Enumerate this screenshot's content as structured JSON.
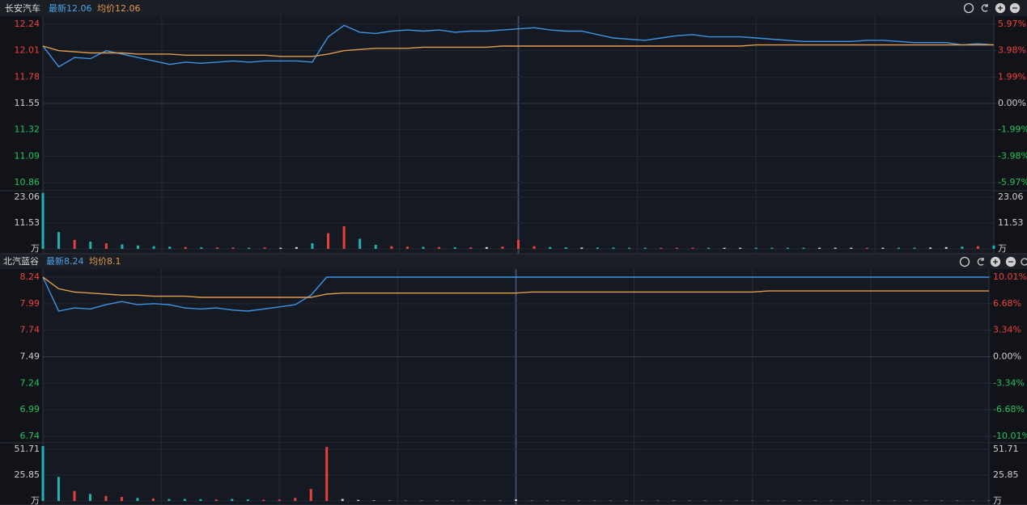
{
  "headers": [
    {
      "name": "长安汽车",
      "latest_label": "最新",
      "latest": 12.06,
      "avg_label": "均价",
      "avg": 12.06
    },
    {
      "name": "北汽蓝谷",
      "latest_label": "最新",
      "latest": 8.24,
      "avg_label": "均价",
      "avg": 8.1
    }
  ],
  "chart_data": [
    {
      "type": "line",
      "x": [
        0,
        4,
        8,
        12,
        16,
        20,
        24,
        28,
        32,
        36,
        40,
        44,
        48,
        52,
        56,
        60,
        64,
        68,
        72,
        76,
        80,
        84,
        88,
        92,
        96,
        100,
        104,
        108,
        112,
        116,
        120,
        124,
        128,
        132,
        136,
        140,
        144,
        148,
        152,
        156,
        160,
        164,
        168,
        172,
        176,
        180,
        184,
        188,
        192,
        196,
        200,
        204,
        208,
        212,
        216,
        220,
        224,
        228,
        232,
        236,
        240
      ],
      "xlim": [
        0,
        240
      ],
      "xticks": [
        30,
        60,
        90,
        120,
        150,
        180,
        210
      ],
      "ylim": [
        10.86,
        12.24
      ],
      "yticks": [
        10.86,
        11.09,
        11.32,
        11.55,
        11.78,
        12.01,
        12.24
      ],
      "y2lim": [
        -5.97,
        5.97
      ],
      "y2ticks": [
        {
          "value": -5.97,
          "label": "-5.97%"
        },
        {
          "value": -3.98,
          "label": "-3.98%"
        },
        {
          "value": -1.99,
          "label": "-1.99%"
        },
        {
          "value": 0,
          "label": "0.00%"
        },
        {
          "value": 1.99,
          "label": "1.99%"
        },
        {
          "value": 3.98,
          "label": "3.98%"
        },
        {
          "value": 5.97,
          "label": "5.97%"
        }
      ],
      "grid": true,
      "series": [
        {
          "color": "#3d95e6",
          "values": [
            12.05,
            11.87,
            11.95,
            11.94,
            12.01,
            11.98,
            11.95,
            11.92,
            11.89,
            11.91,
            11.9,
            11.91,
            11.92,
            11.91,
            11.92,
            11.92,
            11.92,
            11.91,
            12.13,
            12.23,
            12.17,
            12.16,
            12.18,
            12.19,
            12.18,
            12.19,
            12.17,
            12.18,
            12.18,
            12.19,
            12.2,
            12.21,
            12.19,
            12.18,
            12.18,
            12.15,
            12.12,
            12.11,
            12.1,
            12.12,
            12.14,
            12.15,
            12.13,
            12.13,
            12.13,
            12.12,
            12.11,
            12.1,
            12.09,
            12.09,
            12.09,
            12.09,
            12.1,
            12.1,
            12.09,
            12.08,
            12.08,
            12.08,
            12.06,
            12.07,
            12.06
          ]
        },
        {
          "color": "#e39b4c",
          "values": [
            12.05,
            12.01,
            12.0,
            11.99,
            11.99,
            11.99,
            11.98,
            11.98,
            11.98,
            11.97,
            11.97,
            11.97,
            11.97,
            11.97,
            11.97,
            11.96,
            11.96,
            11.96,
            11.98,
            12.01,
            12.02,
            12.03,
            12.03,
            12.03,
            12.04,
            12.04,
            12.04,
            12.04,
            12.04,
            12.05,
            12.05,
            12.05,
            12.05,
            12.05,
            12.05,
            12.05,
            12.05,
            12.05,
            12.05,
            12.05,
            12.05,
            12.05,
            12.05,
            12.05,
            12.05,
            12.06,
            12.06,
            12.06,
            12.06,
            12.06,
            12.06,
            12.06,
            12.06,
            12.06,
            12.06,
            12.06,
            12.06,
            12.06,
            12.06,
            12.06,
            12.06
          ]
        }
      ]
    },
    {
      "type": "bar",
      "x": [
        0,
        4,
        8,
        12,
        16,
        20,
        24,
        28,
        32,
        36,
        40,
        44,
        48,
        52,
        56,
        60,
        64,
        68,
        72,
        76,
        80,
        84,
        88,
        92,
        96,
        100,
        104,
        108,
        112,
        116,
        120,
        124,
        128,
        132,
        136,
        140,
        144,
        148,
        152,
        156,
        160,
        164,
        168,
        172,
        176,
        180,
        184,
        188,
        192,
        196,
        200,
        204,
        208,
        212,
        216,
        220,
        224,
        228,
        232,
        236,
        240
      ],
      "xlim": [
        0,
        240
      ],
      "xticks": [
        30,
        60,
        90,
        120,
        150,
        180,
        210
      ],
      "ylim": [
        0,
        25.6
      ],
      "yticks": [
        {
          "value": 0,
          "label": "万"
        },
        11.53,
        23.06
      ],
      "grid": true,
      "up_color": "#e8413d",
      "down_color": "#1fb3b0",
      "flat_color": "#d0d0d0",
      "values": [
        25.0,
        7.5,
        4.0,
        3.2,
        2.5,
        2.0,
        1.5,
        1.2,
        1.0,
        0.8,
        0.7,
        0.6,
        0.6,
        0.5,
        0.6,
        0.5,
        0.8,
        2.5,
        7.0,
        10.1,
        4.5,
        1.8,
        1.2,
        1.0,
        0.9,
        0.8,
        0.7,
        0.6,
        0.8,
        1.0,
        4.0,
        1.2,
        0.8,
        0.7,
        0.6,
        0.6,
        0.6,
        0.5,
        0.5,
        0.5,
        0.5,
        0.5,
        0.5,
        0.5,
        0.5,
        0.5,
        0.5,
        0.5,
        0.5,
        0.5,
        0.5,
        0.5,
        0.5,
        0.5,
        0.5,
        0.5,
        0.6,
        0.8,
        1.0,
        1.2,
        1.5
      ]
    },
    {
      "type": "line",
      "x": [
        0,
        4,
        8,
        12,
        16,
        20,
        24,
        28,
        32,
        36,
        40,
        44,
        48,
        52,
        56,
        60,
        64,
        68,
        72,
        76,
        80,
        84,
        88,
        92,
        96,
        100,
        104,
        108,
        112,
        116,
        120,
        124,
        128,
        132,
        136,
        140,
        144,
        148,
        152,
        156,
        160,
        164,
        168,
        172,
        176,
        180,
        184,
        188,
        192,
        196,
        200,
        204,
        208,
        212,
        216,
        220,
        224,
        228,
        232,
        236,
        240
      ],
      "xlim": [
        0,
        240
      ],
      "xticks": [
        30,
        60,
        90,
        120,
        150,
        180,
        210
      ],
      "ylim": [
        6.74,
        8.24
      ],
      "yticks": [
        6.74,
        6.99,
        7.24,
        7.49,
        7.74,
        7.99,
        8.24
      ],
      "y2lim": [
        -10.01,
        10.01
      ],
      "y2ticks": [
        {
          "value": -10.01,
          "label": "-10.01%"
        },
        {
          "value": -6.68,
          "label": "-6.68%"
        },
        {
          "value": -3.34,
          "label": "-3.34%"
        },
        {
          "value": 0,
          "label": "0.00%"
        },
        {
          "value": 3.34,
          "label": "3.34%"
        },
        {
          "value": 6.68,
          "label": "6.68%"
        },
        {
          "value": 10.01,
          "label": "10.01%"
        }
      ],
      "grid": true,
      "series": [
        {
          "color": "#3d95e6",
          "values": [
            8.24,
            7.92,
            7.95,
            7.94,
            7.98,
            8.01,
            7.98,
            7.99,
            7.98,
            7.95,
            7.94,
            7.95,
            7.93,
            7.92,
            7.94,
            7.96,
            7.98,
            8.07,
            8.24,
            8.24,
            8.24,
            8.24,
            8.24,
            8.24,
            8.24,
            8.24,
            8.24,
            8.24,
            8.24,
            8.24,
            8.24,
            8.24,
            8.24,
            8.24,
            8.24,
            8.24,
            8.24,
            8.24,
            8.24,
            8.24,
            8.24,
            8.24,
            8.24,
            8.24,
            8.24,
            8.24,
            8.24,
            8.24,
            8.24,
            8.24,
            8.24,
            8.24,
            8.24,
            8.24,
            8.24,
            8.24,
            8.24,
            8.24,
            8.24,
            8.24,
            8.24
          ]
        },
        {
          "color": "#e39b4c",
          "values": [
            8.24,
            8.13,
            8.1,
            8.09,
            8.08,
            8.07,
            8.07,
            8.06,
            8.06,
            8.06,
            8.05,
            8.05,
            8.05,
            8.05,
            8.05,
            8.05,
            8.05,
            8.05,
            8.08,
            8.09,
            8.09,
            8.09,
            8.09,
            8.09,
            8.09,
            8.09,
            8.09,
            8.09,
            8.09,
            8.09,
            8.09,
            8.1,
            8.1,
            8.1,
            8.1,
            8.1,
            8.1,
            8.1,
            8.1,
            8.1,
            8.1,
            8.1,
            8.1,
            8.1,
            8.1,
            8.1,
            8.11,
            8.11,
            8.11,
            8.11,
            8.11,
            8.11,
            8.11,
            8.11,
            8.11,
            8.11,
            8.11,
            8.11,
            8.11,
            8.11,
            8.11
          ]
        }
      ]
    },
    {
      "type": "bar",
      "x": [
        0,
        4,
        8,
        12,
        16,
        20,
        24,
        28,
        32,
        36,
        40,
        44,
        48,
        52,
        56,
        60,
        64,
        68,
        72,
        76,
        80,
        84,
        88,
        92,
        96,
        100,
        104,
        108,
        112,
        116,
        120,
        124,
        128,
        132,
        136,
        140,
        144,
        148,
        152,
        156,
        160,
        164,
        168,
        172,
        176,
        180,
        184,
        188,
        192,
        196,
        200,
        204,
        208,
        212,
        216,
        220,
        224,
        228,
        232,
        236,
        240
      ],
      "xlim": [
        0,
        240
      ],
      "xticks": [
        30,
        60,
        90,
        120,
        150,
        180,
        210
      ],
      "ylim": [
        0,
        58.2
      ],
      "yticks": [
        {
          "value": 0,
          "label": "万"
        },
        25.85,
        51.71
      ],
      "grid": true,
      "up_color": "#e8413d",
      "down_color": "#1fb3b0",
      "flat_color": "#d0d0d0",
      "values": [
        55,
        24,
        10,
        7,
        5,
        4,
        3,
        2.5,
        2,
        2,
        1.8,
        1.5,
        2,
        1.5,
        1.2,
        1.5,
        3,
        12,
        54,
        2,
        1,
        0.5,
        0.4,
        0.3,
        0.3,
        0.3,
        0.3,
        0.3,
        0.3,
        0.3,
        1.5,
        0.3,
        0.3,
        0.3,
        0.3,
        0.3,
        0.3,
        0.3,
        0.3,
        0.3,
        0.3,
        0.3,
        0.3,
        0.3,
        0.3,
        0.3,
        0.3,
        0.3,
        0.3,
        0.3,
        0.3,
        0.3,
        0.3,
        0.3,
        0.3,
        0.3,
        0.3,
        0.3,
        0.3,
        0.3,
        0.3
      ]
    }
  ]
}
